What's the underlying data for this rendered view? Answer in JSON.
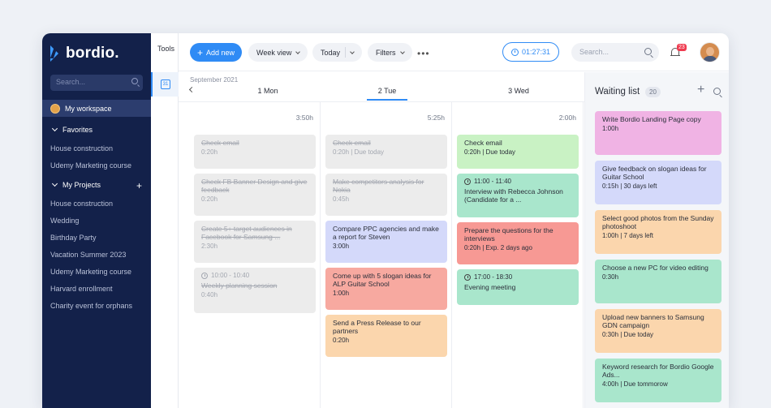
{
  "sidebar": {
    "logo": "bordio.",
    "search_placeholder": "Search...",
    "workspace": "My workspace",
    "favorites_label": "Favorites",
    "favorites": [
      "House construction",
      "Udemy Marketing course"
    ],
    "projects_label": "My Projects",
    "projects": [
      "House construction",
      "Wedding",
      "Birthday Party",
      "Vacation Summer 2023",
      "Udemy Marketing course",
      "Harvard enrollment",
      "Charity event for orphans"
    ]
  },
  "tools": {
    "label": "Tools",
    "calendar_day": "31"
  },
  "toolbar": {
    "add_label": "Add new",
    "view_label": "Week view",
    "today_label": "Today",
    "filters_label": "Filters",
    "more_label": "•••",
    "timer": "01:27:31",
    "search_placeholder": "Search...",
    "notif_count": "23"
  },
  "calendar": {
    "month": "September 2021",
    "days": [
      {
        "label": "1 Mon",
        "total": "3:50h"
      },
      {
        "label": "2 Tue",
        "total": "5:25h"
      },
      {
        "label": "3 Wed",
        "total": "2:00h"
      }
    ],
    "mon": [
      {
        "title": "Check email",
        "meta": "0:20h"
      },
      {
        "title": "Check FB Banner Design and give feedback",
        "meta": "0:20h"
      },
      {
        "title": "Create 5+ target audiences in Facebook for Samsung ...",
        "meta": "2:30h"
      },
      {
        "time": "10:00 - 10:40",
        "title": "Weekly planning session",
        "meta": "0:40h"
      }
    ],
    "tue": [
      {
        "title": "Check email",
        "meta": "0:20h | Due today"
      },
      {
        "title": "Make competitors analysis for Nokia",
        "meta": "0:45h"
      },
      {
        "title": "Compare PPC agencies and make a report for Steven",
        "meta": "3:00h"
      },
      {
        "title": "Come up with 5 slogan ideas for ALP Guitar School",
        "meta": "1:00h"
      },
      {
        "title": "Send a Press Release to our partners",
        "meta": "0:20h"
      }
    ],
    "wed": [
      {
        "title": "Check email",
        "meta": "0:20h | Due today"
      },
      {
        "time": "11:00 - 11:40",
        "title": "Interview with Rebecca Johnson (Candidate for a ..."
      },
      {
        "title": "Prepare the questions for the interviews",
        "meta": "0:20h | Exp. 2 days ago"
      },
      {
        "time": "17:00 - 18:30",
        "title": "Evening meeting"
      }
    ]
  },
  "waiting": {
    "title": "Waiting list",
    "count": "20",
    "items": [
      {
        "title": "Write Bordio Landing Page copy",
        "meta": "1:00h"
      },
      {
        "title": "Give feedback on slogan ideas for Guitar School",
        "meta": "0:15h | 30 days left"
      },
      {
        "title": "Select good photos from the Sunday photoshoot",
        "meta": "1:00h | 7 days left"
      },
      {
        "title": "Choose a new PC for video editing",
        "meta": "0:30h"
      },
      {
        "title": "Upload new banners to Samsung GDN campaign",
        "meta": "0:30h | Due today"
      },
      {
        "title": "Keyword research for Bordio Google Ads...",
        "meta": "4:00h | Due tommorow"
      }
    ]
  },
  "colors": {
    "accent": "#2f8bf5",
    "sidebar": "#13214a",
    "green": "#c9f2c4",
    "teal": "#a9e6cc",
    "purple": "#d4d9fa",
    "salmon": "#f7a9a0",
    "red": "#f79994",
    "orange": "#fbd6ad",
    "pink": "#f0b3e4"
  }
}
